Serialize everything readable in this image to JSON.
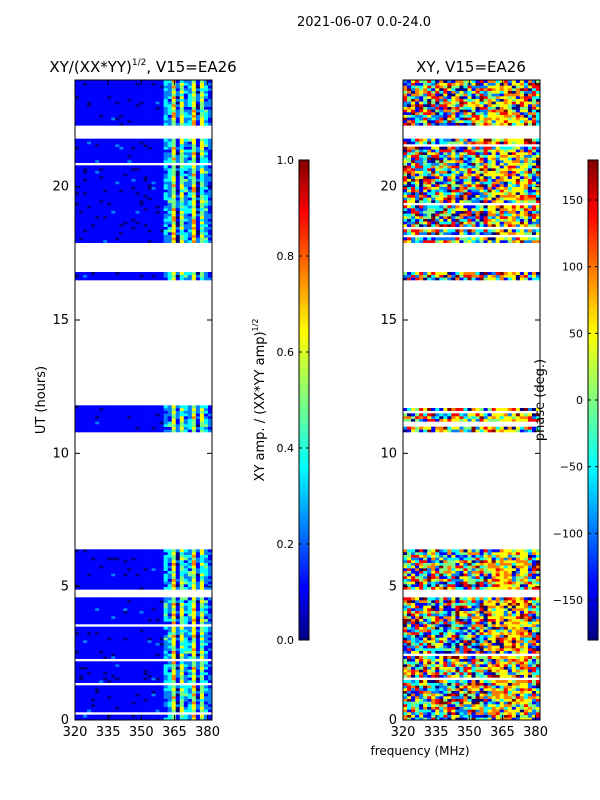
{
  "suptitle": "2021-06-07 0.0-24.0",
  "xlabel_shared": "frequency (MHz)",
  "chart_data": [
    {
      "type": "heatmap",
      "title_main": "XY/(XX*YY)",
      "title_sup": "1/2",
      "title_tail": ", V15=EA26",
      "ylabel": "UT (hours)",
      "xlim": [
        320,
        382
      ],
      "ylim": [
        0,
        24
      ],
      "x_ticks": [
        320,
        335,
        350,
        365,
        380
      ],
      "y_ticks": [
        0,
        5,
        10,
        15,
        20
      ],
      "colorbar": {
        "label_main": "XY amp. / (XX*YY amp)",
        "label_sup": "1/2",
        "range": [
          0.0,
          1.0
        ],
        "ticks": [
          "0.0",
          "0.2",
          "0.4",
          "0.6",
          "0.8",
          "1.0"
        ],
        "tick_values": [
          0.0,
          0.2,
          0.4,
          0.6,
          0.8,
          1.0
        ]
      }
    },
    {
      "type": "heatmap",
      "title": "XY, V15=EA26",
      "xlim": [
        320,
        382
      ],
      "ylim": [
        0,
        24
      ],
      "x_ticks": [
        320,
        335,
        350,
        365,
        380
      ],
      "y_ticks": [
        0,
        5,
        10,
        15,
        20
      ],
      "colorbar": {
        "label": "phase (deg.)",
        "range": [
          -180,
          180
        ],
        "ticks": [
          "−150",
          "−100",
          "−50",
          "0",
          "50",
          "100",
          "150"
        ],
        "tick_values": [
          -150,
          -100,
          -50,
          0,
          50,
          100,
          150
        ]
      }
    }
  ],
  "data_blocks_ut": [
    [
      0.0,
      4.6
    ],
    [
      4.9,
      6.4
    ],
    [
      10.8,
      11.8
    ],
    [
      16.5,
      16.8
    ],
    [
      17.9,
      21.8
    ],
    [
      22.3,
      24.0
    ]
  ],
  "colormap": [
    "#00007f",
    "#0000ff",
    "#007fff",
    "#00ffff",
    "#7fff7f",
    "#ffff00",
    "#ff7f00",
    "#ff0000",
    "#7f0000"
  ]
}
